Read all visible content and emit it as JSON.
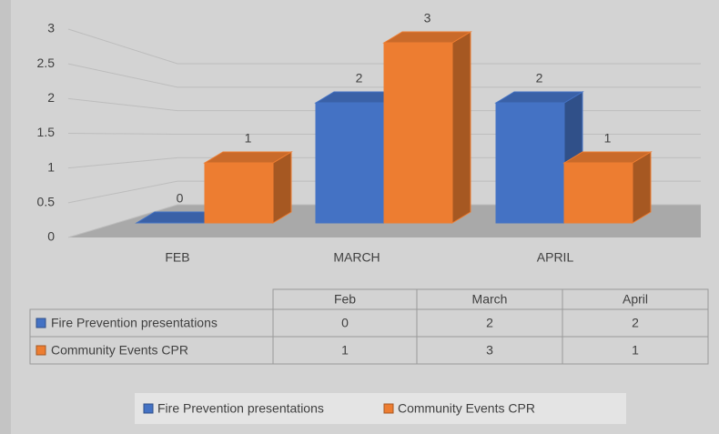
{
  "chart_data": {
    "type": "bar3d",
    "categories": [
      "FEB",
      "MARCH",
      "APRIL"
    ],
    "series": [
      {
        "name": "Fire Prevention presentations",
        "color": "#4472c4",
        "values": [
          0,
          2,
          2
        ]
      },
      {
        "name": "Community Events CPR",
        "color": "#ed7d31",
        "values": [
          1,
          3,
          1
        ]
      }
    ],
    "ylim": [
      0,
      3
    ],
    "yticks": [
      0,
      0.5,
      1,
      1.5,
      2,
      2.5,
      3
    ],
    "grid": true,
    "data_labels": true,
    "table": {
      "columns": [
        "Feb",
        "March",
        "April"
      ]
    },
    "legend": "bottom"
  }
}
